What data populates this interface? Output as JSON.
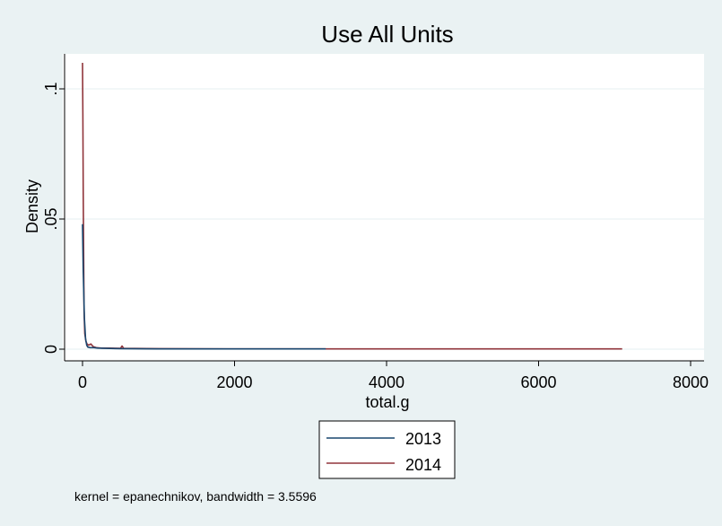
{
  "chart_data": {
    "type": "line",
    "title": "Use All Units",
    "xlabel": "total.g",
    "ylabel": "Density",
    "xlim": [
      0,
      8000
    ],
    "ylim": [
      0,
      0.11
    ],
    "xticks": [
      0,
      2000,
      4000,
      6000,
      8000
    ],
    "xtick_labels": [
      "0",
      "2000",
      "4000",
      "6000",
      "8000"
    ],
    "yticks": [
      0,
      0.05,
      0.1
    ],
    "ytick_labels": [
      "0",
      ".05",
      ".1"
    ],
    "grid": true,
    "legend_position": "bottom",
    "note": "kernel = epanechnikov, bandwidth = 3.5596",
    "series": [
      {
        "name": "2013",
        "color": "#1a476f",
        "x": [
          0,
          10,
          25,
          40,
          55,
          70,
          100,
          150,
          200,
          300,
          500,
          1000,
          2000,
          3200
        ],
        "y": [
          0.048,
          0.03,
          0.012,
          0.004,
          0.0015,
          0.0008,
          0.0006,
          0.0006,
          0.0004,
          0.0003,
          0.0002,
          0.0001,
          0.0001,
          0.0001
        ]
      },
      {
        "name": "2014",
        "color": "#90353b",
        "x": [
          0,
          5,
          10,
          15,
          20,
          30,
          45,
          60,
          80,
          110,
          140,
          180,
          250,
          350,
          500,
          520,
          540,
          1000,
          2000,
          4000,
          7100
        ],
        "y": [
          0.11,
          0.09,
          0.06,
          0.035,
          0.015,
          0.006,
          0.003,
          0.002,
          0.0015,
          0.002,
          0.001,
          0.0006,
          0.0004,
          0.0004,
          0.0003,
          0.0012,
          0.0003,
          0.0002,
          0.0001,
          0.0001,
          0.0001
        ]
      }
    ]
  }
}
